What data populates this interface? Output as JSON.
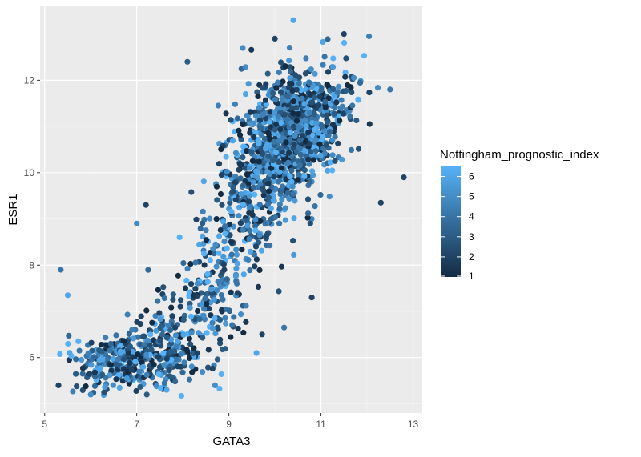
{
  "chart_data": {
    "type": "scatter",
    "title": "",
    "xlabel": "GATA3",
    "ylabel": "ESR1",
    "xlim": [
      4.9,
      13.2
    ],
    "ylim": [
      4.8,
      13.6
    ],
    "x_ticks": [
      "5",
      "7",
      "9",
      "11",
      "13"
    ],
    "x_tick_values": [
      5,
      7,
      9,
      11,
      13
    ],
    "y_ticks": [
      "6",
      "8",
      "10",
      "12"
    ],
    "y_tick_values": [
      6,
      8,
      10,
      12
    ],
    "grid": true,
    "point_count_estimate": 1900,
    "clusters": [
      {
        "n": 380,
        "cx": 6.9,
        "cy": 5.95,
        "sx": 0.75,
        "sy": 0.38,
        "rho": 0.25
      },
      {
        "n": 110,
        "cx": 8.1,
        "cy": 6.6,
        "sx": 0.7,
        "sy": 0.6,
        "rho": 0.4
      },
      {
        "n": 160,
        "cx": 8.7,
        "cy": 7.6,
        "sx": 0.6,
        "sy": 0.75,
        "rho": 0.55
      },
      {
        "n": 350,
        "cx": 9.8,
        "cy": 9.7,
        "sx": 0.6,
        "sy": 0.8,
        "rho": 0.45
      },
      {
        "n": 850,
        "cx": 10.4,
        "cy": 11.0,
        "sx": 0.6,
        "sy": 0.65,
        "rho": 0.3
      }
    ],
    "sample_points": [
      {
        "x": 5.35,
        "y": 7.9,
        "color_value": 4
      },
      {
        "x": 5.5,
        "y": 7.35,
        "color_value": 6
      },
      {
        "x": 5.3,
        "y": 5.4,
        "color_value": 2
      },
      {
        "x": 6.0,
        "y": 5.2,
        "color_value": 5
      },
      {
        "x": 7.0,
        "y": 8.9,
        "color_value": 5
      },
      {
        "x": 7.2,
        "y": 9.3,
        "color_value": 2
      },
      {
        "x": 8.1,
        "y": 12.4,
        "color_value": 3
      },
      {
        "x": 9.3,
        "y": 12.7,
        "color_value": 5
      },
      {
        "x": 10.4,
        "y": 13.3,
        "color_value": 6
      },
      {
        "x": 10.0,
        "y": 12.9,
        "color_value": 2
      },
      {
        "x": 11.5,
        "y": 13.0,
        "color_value": 2
      },
      {
        "x": 12.8,
        "y": 9.9,
        "color_value": 2
      },
      {
        "x": 12.5,
        "y": 11.8,
        "color_value": 4
      },
      {
        "x": 12.3,
        "y": 9.35,
        "color_value": 2
      },
      {
        "x": 10.8,
        "y": 7.3,
        "color_value": 2
      },
      {
        "x": 10.2,
        "y": 6.65,
        "color_value": 4
      },
      {
        "x": 9.6,
        "y": 6.1,
        "color_value": 6
      },
      {
        "x": 7.65,
        "y": 5.3,
        "color_value": 6
      },
      {
        "x": 8.7,
        "y": 5.4,
        "color_value": 5
      }
    ],
    "color_scale": {
      "variable": "Nottingham_prognostic_index",
      "min": 1,
      "max": 6.5,
      "low_color": "#132b43",
      "high_color": "#56b1f7",
      "breaks": [
        "1",
        "2",
        "3",
        "4",
        "5",
        "6"
      ],
      "break_values": [
        1,
        2,
        3,
        4,
        5,
        6
      ]
    },
    "legend_position": "right",
    "colors": {
      "panel_background": "#ebebeb",
      "grid_major": "#ffffff",
      "grid_minor": "#f5f5f5"
    }
  }
}
